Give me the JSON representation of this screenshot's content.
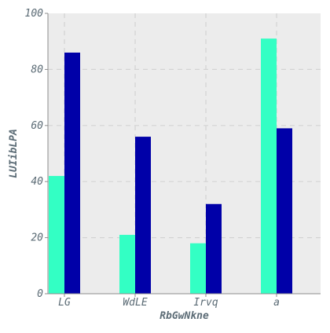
{
  "chart_data": {
    "type": "bar",
    "title": "",
    "xlabel": "RbGwNkne",
    "ylabel": "LUIibLPA",
    "categories": [
      "LG",
      "WdLE",
      "Irvq",
      "a"
    ],
    "series": [
      {
        "values": [
          42,
          21,
          18,
          91
        ]
      },
      {
        "values": [
          86,
          56,
          32,
          59
        ]
      }
    ],
    "ylim": [
      0,
      100
    ],
    "yticks": [
      "0",
      "20",
      "40",
      "60",
      "80",
      "100"
    ],
    "grid": true
  },
  "colors": {
    "series_0": "#33ffc4",
    "series_1": "#0000a8",
    "plot_background": "#ececec",
    "grid": "#d3d3d3",
    "axis": "#8c8c8c",
    "text": "#5b6b75"
  }
}
